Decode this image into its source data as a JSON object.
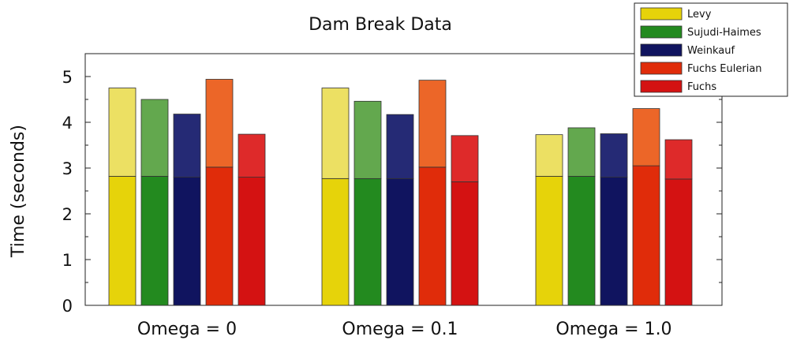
{
  "chart_data": {
    "type": "bar",
    "title": "Dam Break Data",
    "xlabel": "",
    "ylabel": "Time (seconds)",
    "ylim": [
      0,
      5.5
    ],
    "yticks": [
      "0",
      "1",
      "2",
      "3",
      "4",
      "5"
    ],
    "categories": [
      "Omega = 0",
      "Omega = 0.1",
      "Omega = 1.0"
    ],
    "legend_position": "top-right",
    "stacked": true,
    "series": [
      {
        "name": "Levy",
        "color": "#e6d30a",
        "light_color": "#ece063",
        "base": [
          2.82,
          2.77,
          2.82
        ],
        "total": [
          4.75,
          4.75,
          3.73
        ]
      },
      {
        "name": "Sujudi-Haimes",
        "color": "#238a1f",
        "light_color": "#63a84e",
        "base": [
          2.82,
          2.77,
          2.82
        ],
        "total": [
          4.5,
          4.46,
          3.88
        ]
      },
      {
        "name": "Weinkauf",
        "color": "#10145f",
        "light_color": "#252a75",
        "base": [
          2.8,
          2.77,
          2.8
        ],
        "total": [
          4.18,
          4.17,
          3.75
        ]
      },
      {
        "name": "Fuchs Eulerian",
        "color": "#e02c0a",
        "light_color": "#ec6628",
        "base": [
          3.02,
          3.02,
          3.05
        ],
        "total": [
          4.94,
          4.92,
          4.3
        ]
      },
      {
        "name": "Fuchs",
        "color": "#d41212",
        "light_color": "#de2a2a",
        "base": [
          2.8,
          2.7,
          2.76
        ],
        "total": [
          3.74,
          3.71,
          3.62
        ]
      }
    ]
  }
}
